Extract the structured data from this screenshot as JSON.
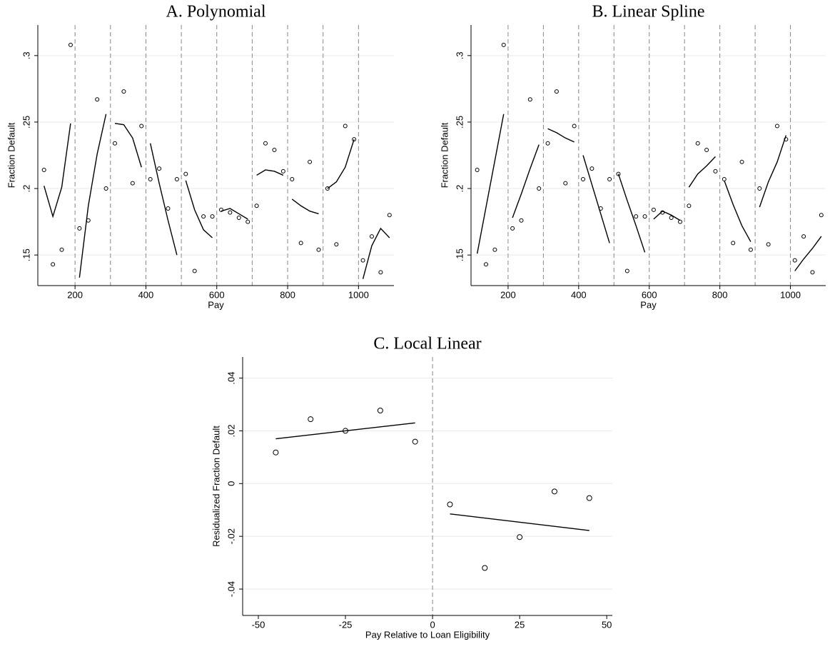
{
  "chart_data": [
    {
      "type": "scatter",
      "title": "A. Polynomial",
      "x_label": "Pay",
      "y_label": "Fraction Default",
      "x": [
        112.5,
        137.5,
        162.5,
        187.5,
        212.5,
        237.5,
        262.5,
        287.5,
        312.5,
        337.5,
        362.5,
        387.5,
        412.5,
        437.5,
        462.5,
        487.5,
        512.5,
        537.5,
        562.5,
        587.5,
        612.5,
        637.5,
        662.5,
        687.5,
        712.5,
        737.5,
        762.5,
        787.5,
        812.5,
        837.5,
        862.5,
        887.5,
        912.5,
        937.5,
        962.5,
        987.5,
        1012.5,
        1037.5,
        1062.5,
        1087.5
      ],
      "values": [
        0.214,
        0.143,
        0.154,
        0.308,
        0.17,
        0.176,
        0.267,
        0.2,
        0.234,
        0.273,
        0.204,
        0.247,
        0.207,
        0.215,
        0.185,
        0.207,
        0.211,
        0.138,
        0.179,
        0.179,
        0.184,
        0.182,
        0.178,
        0.175,
        0.187,
        0.234,
        0.229,
        0.213,
        0.207,
        0.159,
        0.22,
        0.154,
        0.2,
        0.158,
        0.247,
        0.237,
        0.146,
        0.164,
        0.137,
        0.18
      ],
      "segments": [
        {
          "x": [
            112.5,
            137.5,
            162.5,
            187.5
          ],
          "values": [
            0.202,
            0.179,
            0.201,
            0.249
          ]
        },
        {
          "x": [
            212.5,
            237.5,
            262.5,
            287.5
          ],
          "values": [
            0.133,
            0.187,
            0.226,
            0.256
          ]
        },
        {
          "x": [
            312.5,
            337.5,
            362.5,
            387.5
          ],
          "values": [
            0.249,
            0.248,
            0.238,
            0.216
          ]
        },
        {
          "x": [
            412.5,
            437.5,
            462.5,
            487.5
          ],
          "values": [
            0.234,
            0.204,
            0.176,
            0.15
          ]
        },
        {
          "x": [
            512.5,
            537.5,
            562.5,
            587.5
          ],
          "values": [
            0.206,
            0.184,
            0.169,
            0.163
          ]
        },
        {
          "x": [
            612.5,
            637.5,
            662.5,
            687.5
          ],
          "values": [
            0.183,
            0.185,
            0.181,
            0.177
          ]
        },
        {
          "x": [
            712.5,
            737.5,
            762.5,
            787.5
          ],
          "values": [
            0.21,
            0.214,
            0.213,
            0.21
          ]
        },
        {
          "x": [
            812.5,
            837.5,
            862.5,
            887.5
          ],
          "values": [
            0.192,
            0.187,
            0.183,
            0.181
          ]
        },
        {
          "x": [
            912.5,
            937.5,
            962.5,
            987.5
          ],
          "values": [
            0.2,
            0.205,
            0.216,
            0.237
          ]
        },
        {
          "x": [
            1012.5,
            1037.5,
            1062.5,
            1087.5
          ],
          "values": [
            0.132,
            0.157,
            0.17,
            0.163
          ]
        }
      ],
      "vlines": [
        200,
        300,
        400,
        500,
        600,
        700,
        800,
        900,
        1000
      ],
      "xlim": [
        95,
        1100
      ],
      "xticks": [
        200,
        400,
        600,
        800,
        1000
      ],
      "ylim": [
        0.127,
        0.323
      ],
      "yticks": [
        {
          "value": 0.15,
          "label": ".15"
        },
        {
          "value": 0.2,
          "label": ".2"
        },
        {
          "value": 0.25,
          "label": ".25"
        },
        {
          "value": 0.3,
          "label": ".3"
        }
      ],
      "grid": true,
      "color": "#000000"
    },
    {
      "type": "scatter",
      "title": "B. Linear Spline",
      "x_label": "Pay",
      "y_label": "Fraction Default",
      "x": [
        112.5,
        137.5,
        162.5,
        187.5,
        212.5,
        237.5,
        262.5,
        287.5,
        312.5,
        337.5,
        362.5,
        387.5,
        412.5,
        437.5,
        462.5,
        487.5,
        512.5,
        537.5,
        562.5,
        587.5,
        612.5,
        637.5,
        662.5,
        687.5,
        712.5,
        737.5,
        762.5,
        787.5,
        812.5,
        837.5,
        862.5,
        887.5,
        912.5,
        937.5,
        962.5,
        987.5,
        1012.5,
        1037.5,
        1062.5,
        1087.5
      ],
      "values": [
        0.214,
        0.143,
        0.154,
        0.308,
        0.17,
        0.176,
        0.267,
        0.2,
        0.234,
        0.273,
        0.204,
        0.247,
        0.207,
        0.215,
        0.185,
        0.207,
        0.211,
        0.138,
        0.179,
        0.179,
        0.184,
        0.182,
        0.178,
        0.175,
        0.187,
        0.234,
        0.229,
        0.213,
        0.207,
        0.159,
        0.22,
        0.154,
        0.2,
        0.158,
        0.247,
        0.237,
        0.146,
        0.164,
        0.137,
        0.18
      ],
      "segments": [
        {
          "x": [
            112.5,
            137.5,
            162.5,
            187.5
          ],
          "values": [
            0.151,
            0.186,
            0.221,
            0.256
          ]
        },
        {
          "x": [
            212.5,
            237.5,
            262.5,
            287.5
          ],
          "values": [
            0.178,
            0.196,
            0.215,
            0.233
          ]
        },
        {
          "x": [
            312.5,
            337.5,
            362.5,
            387.5
          ],
          "values": [
            0.245,
            0.242,
            0.238,
            0.235
          ]
        },
        {
          "x": [
            412.5,
            437.5,
            462.5,
            487.5
          ],
          "values": [
            0.225,
            0.203,
            0.181,
            0.159
          ]
        },
        {
          "x": [
            512.5,
            537.5,
            562.5,
            587.5
          ],
          "values": [
            0.211,
            0.191,
            0.172,
            0.152
          ]
        },
        {
          "x": [
            612.5,
            637.5,
            662.5,
            687.5
          ],
          "values": [
            0.177,
            0.183,
            0.18,
            0.176
          ]
        },
        {
          "x": [
            712.5,
            737.5,
            762.5,
            787.5
          ],
          "values": [
            0.201,
            0.211,
            0.217,
            0.224
          ]
        },
        {
          "x": [
            812.5,
            837.5,
            862.5,
            887.5
          ],
          "values": [
            0.206,
            0.188,
            0.172,
            0.16
          ]
        },
        {
          "x": [
            912.5,
            937.5,
            962.5,
            987.5
          ],
          "values": [
            0.186,
            0.205,
            0.22,
            0.24
          ]
        },
        {
          "x": [
            1012.5,
            1037.5,
            1062.5,
            1087.5
          ],
          "values": [
            0.138,
            0.147,
            0.155,
            0.164
          ]
        }
      ],
      "vlines": [
        200,
        300,
        400,
        500,
        600,
        700,
        800,
        900,
        1000
      ],
      "xlim": [
        95,
        1100
      ],
      "xticks": [
        200,
        400,
        600,
        800,
        1000
      ],
      "ylim": [
        0.127,
        0.323
      ],
      "yticks": [
        {
          "value": 0.15,
          "label": ".15"
        },
        {
          "value": 0.2,
          "label": ".2"
        },
        {
          "value": 0.25,
          "label": ".25"
        },
        {
          "value": 0.3,
          "label": ".3"
        }
      ],
      "grid": true,
      "color": "#000000"
    },
    {
      "type": "scatter",
      "title": "C. Local Linear",
      "x_label": "Pay Relative to Loan Eligibility",
      "y_label": "Residualized Fraction Default",
      "x": [
        -45,
        -35,
        -25,
        -15,
        -5,
        5,
        15,
        25,
        35,
        45
      ],
      "values": [
        0.0118,
        0.0244,
        0.02,
        0.0277,
        0.0159,
        -0.0079,
        -0.032,
        -0.0203,
        -0.003,
        -0.0055
      ],
      "segments": [
        {
          "x": [
            -45,
            -5
          ],
          "values": [
            0.017,
            0.023
          ]
        },
        {
          "x": [
            5,
            45
          ],
          "values": [
            -0.0115,
            -0.0178
          ]
        }
      ],
      "vlines": [
        0
      ],
      "xlim": [
        -54.5,
        51.6
      ],
      "xticks": [
        -50,
        -25,
        0,
        25,
        50
      ],
      "ylim": [
        -0.05,
        0.048
      ],
      "yticks": [
        {
          "value": -0.04,
          "label": "-.04"
        },
        {
          "value": -0.02,
          "label": "-.02"
        },
        0,
        {
          "value": 0.02,
          "label": ".02"
        },
        {
          "value": 0.04,
          "label": ".04"
        }
      ],
      "grid": true,
      "color": "#000000"
    }
  ]
}
